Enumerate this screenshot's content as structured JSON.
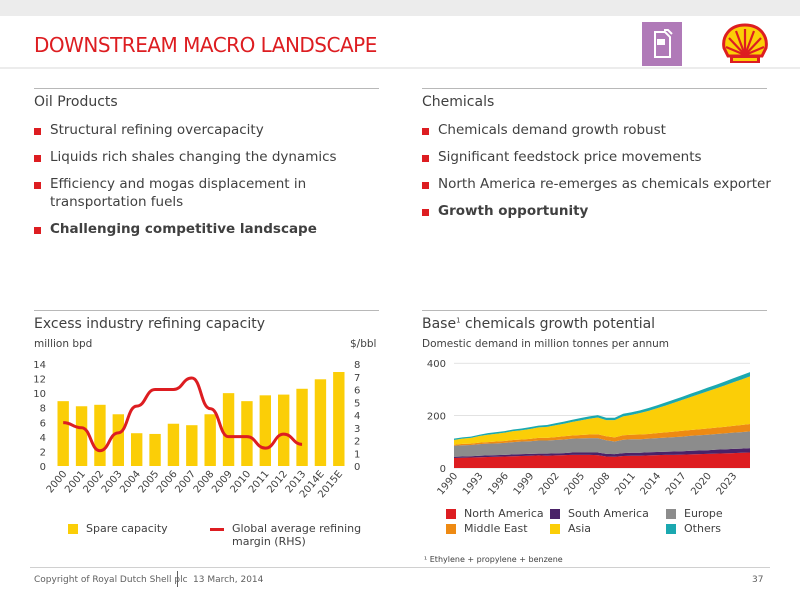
{
  "header": {
    "title": "DOWNSTREAM MACRO LANDSCAPE",
    "pump_icon": "fuel-pump-icon",
    "logo": "shell-pecten-logo",
    "accent": "#dd1d21",
    "icon_bg": "#b07ab8"
  },
  "oil": {
    "heading": "Oil Products",
    "bullets": [
      "Structural refining overcapacity",
      "Liquids rich shales changing the dynamics",
      "Efficiency and mogas displacement in transportation fuels",
      "Challenging competitive landscape"
    ]
  },
  "chemicals": {
    "heading": "Chemicals",
    "bullets": [
      "Chemicals demand growth robust",
      "Significant feedstock price movements",
      "North America re-emerges as chemicals exporter",
      "Growth opportunity"
    ]
  },
  "left_chart": {
    "heading": "Excess industry refining capacity",
    "left_unit": "million bpd",
    "right_unit": "$/bbl",
    "legend": [
      "Spare capacity",
      "Global average refining margin (RHS)"
    ]
  },
  "right_chart": {
    "heading_main": "Base",
    "heading_sup": "1",
    "heading_rest": " chemicals growth potential",
    "subtitle": "Domestic demand in million tonnes per annum",
    "legend": [
      "North America",
      "South America",
      "Europe",
      "Middle East",
      "Asia",
      "Others"
    ]
  },
  "chart_data": [
    {
      "type": "bar",
      "title": "Excess industry refining capacity",
      "ylabel": "million bpd",
      "y2label": "$/bbl",
      "categories": [
        "2000",
        "2001",
        "2002",
        "2003",
        "2004",
        "2005",
        "2006",
        "2007",
        "2008",
        "2009",
        "2010",
        "2011",
        "2012",
        "2013",
        "2014E",
        "2015E"
      ],
      "ylim": [
        0,
        14
      ],
      "yticks": [
        0,
        2,
        4,
        6,
        8,
        10,
        12,
        14
      ],
      "y2lim": [
        0,
        8
      ],
      "y2ticks": [
        0,
        1,
        2,
        3,
        4,
        5,
        6,
        7,
        8
      ],
      "series": [
        {
          "name": "Spare capacity",
          "color": "#fbce07",
          "axis": "left",
          "kind": "bar",
          "values": [
            8.9,
            8.2,
            8.4,
            7.1,
            4.5,
            4.4,
            5.8,
            5.6,
            7.1,
            10.0,
            8.9,
            9.7,
            9.8,
            10.6,
            11.9,
            12.9
          ]
        },
        {
          "name": "Global average refining margin (RHS)",
          "color": "#dd1d21",
          "axis": "right",
          "kind": "line",
          "values": [
            3.4,
            3.0,
            1.2,
            2.6,
            4.7,
            6.0,
            6.0,
            6.9,
            4.5,
            2.3,
            2.3,
            1.4,
            2.5,
            1.7,
            null,
            null
          ]
        }
      ]
    },
    {
      "type": "area",
      "title": "Base chemicals growth potential",
      "subtitle": "Domestic demand in million tonnes per annum",
      "x": [
        1990,
        1991,
        1992,
        1993,
        1994,
        1995,
        1996,
        1997,
        1998,
        1999,
        2000,
        2001,
        2002,
        2003,
        2004,
        2005,
        2006,
        2007,
        2008,
        2009,
        2010,
        2011,
        2012,
        2013,
        2014,
        2015,
        2016,
        2017,
        2018,
        2019,
        2020,
        2021,
        2022,
        2023,
        2024,
        2025
      ],
      "xticks": [
        1990,
        1993,
        1996,
        1999,
        2002,
        2005,
        2008,
        2011,
        2014,
        2017,
        2020,
        2023
      ],
      "ylim": [
        0,
        420
      ],
      "yticks": [
        0,
        200,
        400
      ],
      "stacked": true,
      "series": [
        {
          "name": "North America",
          "color": "#dd1d21",
          "values": [
            38,
            39,
            40,
            41,
            42,
            43,
            44,
            45,
            46,
            47,
            48,
            47,
            48,
            49,
            50,
            50,
            50,
            49,
            44,
            43,
            46,
            47,
            47,
            48,
            49,
            50,
            50,
            51,
            52,
            53,
            54,
            55,
            56,
            57,
            58,
            59
          ]
        },
        {
          "name": "South America",
          "color": "#4a2268",
          "values": [
            5,
            5,
            5,
            6,
            6,
            6,
            6,
            7,
            7,
            7,
            7,
            8,
            8,
            8,
            9,
            9,
            9,
            10,
            10,
            10,
            11,
            11,
            11,
            12,
            12,
            12,
            13,
            13,
            14,
            14,
            14,
            15,
            15,
            16,
            16,
            17
          ]
        },
        {
          "name": "Europe",
          "color": "#8c8c8c",
          "values": [
            42,
            43,
            43,
            44,
            45,
            45,
            46,
            47,
            48,
            48,
            50,
            50,
            51,
            52,
            53,
            54,
            55,
            55,
            52,
            48,
            51,
            52,
            52,
            52,
            53,
            54,
            55,
            56,
            57,
            58,
            59,
            60,
            61,
            62,
            63,
            64
          ]
        },
        {
          "name": "Middle East",
          "color": "#ee8a13",
          "values": [
            4,
            5,
            5,
            6,
            6,
            7,
            7,
            8,
            8,
            9,
            10,
            10,
            11,
            12,
            12,
            13,
            14,
            15,
            15,
            16,
            17,
            17,
            18,
            18,
            19,
            20,
            21,
            22,
            22,
            23,
            24,
            24,
            25,
            26,
            27,
            28
          ]
        },
        {
          "name": "Asia",
          "color": "#fbce07",
          "values": [
            18,
            20,
            22,
            25,
            28,
            30,
            32,
            34,
            35,
            38,
            40,
            42,
            45,
            48,
            52,
            56,
            60,
            64,
            62,
            66,
            72,
            76,
            82,
            88,
            95,
            102,
            110,
            118,
            126,
            134,
            142,
            150,
            158,
            166,
            174,
            182
          ]
        },
        {
          "name": "Others",
          "color": "#1ba8b0",
          "values": [
            5,
            5,
            5,
            5,
            6,
            6,
            6,
            6,
            7,
            7,
            7,
            7,
            8,
            8,
            8,
            9,
            9,
            9,
            9,
            9,
            10,
            10,
            10,
            11,
            11,
            12,
            12,
            12,
            13,
            13,
            14,
            14,
            15,
            15,
            16,
            16
          ]
        }
      ]
    }
  ],
  "footnote": "¹ Ethylene + propylene + benzene",
  "footer": {
    "copyright": "Copyright of Royal Dutch Shell plc",
    "date": "13  March, 2014",
    "page": "37"
  }
}
